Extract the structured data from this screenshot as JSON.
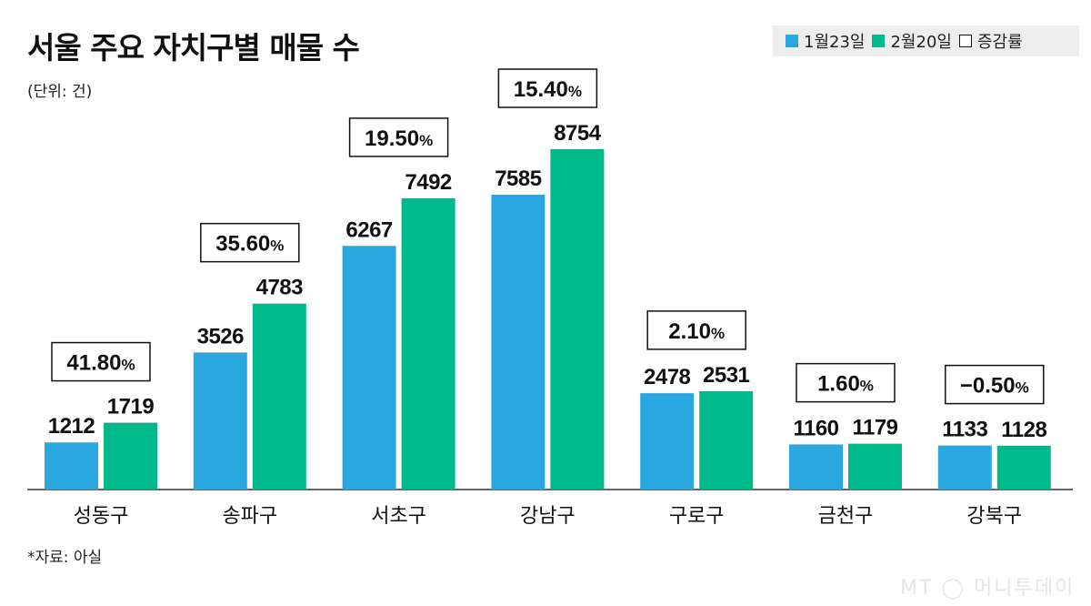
{
  "chart_data": {
    "type": "bar",
    "title": "서울 주요 자치구별 매물 수",
    "subtitle": "(단위: 건)",
    "categories": [
      "성동구",
      "송파구",
      "서초구",
      "강남구",
      "구로구",
      "금천구",
      "강북구"
    ],
    "series": [
      {
        "name": "1월23일",
        "color": "#29a8e0",
        "values": [
          1212,
          3526,
          6267,
          7585,
          2478,
          1160,
          1133
        ]
      },
      {
        "name": "2월20일",
        "color": "#00b98a",
        "values": [
          1719,
          4783,
          7492,
          8754,
          2531,
          1179,
          1128
        ]
      }
    ],
    "change_label": "증감률",
    "changes": [
      "41.80",
      "35.60",
      "19.50",
      "15.40",
      "2.10",
      "1.60",
      "-0.50"
    ],
    "change_unit": "%",
    "ylim": [
      0,
      8754
    ],
    "grid": false,
    "legend": "top-right"
  },
  "source": "*자료: 아실",
  "logo": "MT 머니투데이"
}
